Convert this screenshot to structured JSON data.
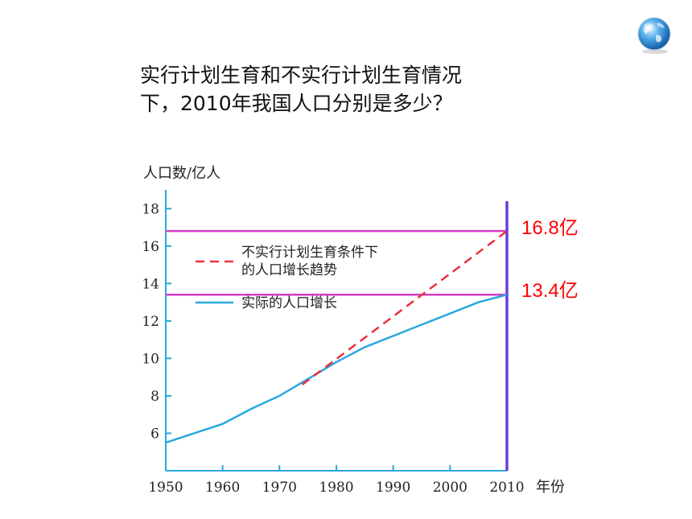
{
  "question": {
    "line1": "实行计划生育和不实行计划生育情况",
    "line2": "下，2010年我国人口分别是多少？"
  },
  "icons": {
    "corner": "globe-icon"
  },
  "colors": {
    "axis": "#29a8e0",
    "actual_line": "#29a8e0",
    "projection_line": "#e8323c",
    "reference_lines": "#d43cc8",
    "marker_2010": "#6a3fd6",
    "annotation_text": "#ff0000"
  },
  "chart_data": {
    "type": "line",
    "ylabel": "人口数/亿人",
    "xlabel": "年份",
    "xlim": [
      1950,
      2010
    ],
    "ylim": [
      4,
      19
    ],
    "x_ticks": [
      1950,
      1960,
      1970,
      1980,
      1990,
      2000,
      2010
    ],
    "y_ticks": [
      6,
      8,
      10,
      12,
      14,
      16,
      18
    ],
    "legend_position": "upper-left inside plot",
    "series": [
      {
        "name": "实际的人口增长",
        "style": "solid",
        "x": [
          1950,
          1955,
          1960,
          1965,
          1970,
          1975,
          1980,
          1985,
          1990,
          1995,
          2000,
          2005,
          2010
        ],
        "y": [
          5.5,
          6.0,
          6.5,
          7.3,
          8.0,
          8.9,
          9.8,
          10.6,
          11.2,
          11.8,
          12.4,
          13.0,
          13.4
        ]
      },
      {
        "name": "不实行计划生育条件下的人口增长趋势",
        "name_lines": [
          "不实行计划生育条件下",
          "的人口增长趋势"
        ],
        "style": "dashed",
        "x": [
          1974,
          2010
        ],
        "y": [
          8.6,
          16.8
        ]
      }
    ],
    "reference_lines": [
      {
        "y": 16.8,
        "label": "16.8亿"
      },
      {
        "y": 13.4,
        "label": "13.4亿"
      }
    ],
    "vertical_marker": {
      "x": 2010
    }
  }
}
